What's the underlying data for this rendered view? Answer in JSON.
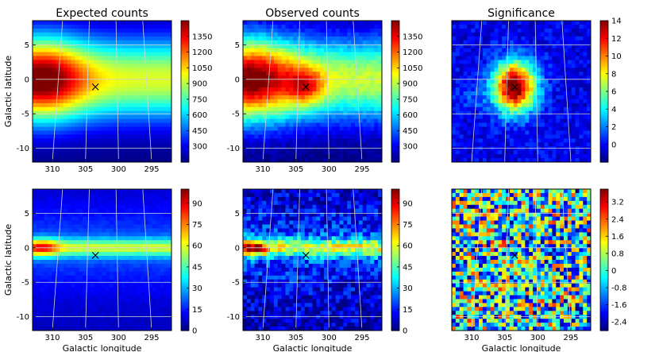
{
  "chart_data": [
    {
      "type": "heatmap",
      "title": "Expected counts",
      "xlabel": "",
      "ylabel": "Galactic latitude",
      "x_ticks": [
        "310",
        "305",
        "300",
        "295"
      ],
      "y_ticks": [
        "5",
        "0",
        "-5",
        "-10"
      ],
      "xlim": [
        313,
        292
      ],
      "ylim": [
        -12,
        8.5
      ],
      "colorbar": {
        "min": 150,
        "max": 1500,
        "ticks": [
          "1350",
          "1200",
          "1050",
          "900",
          "750",
          "600",
          "450",
          "300"
        ]
      },
      "field": "expected_top",
      "marker": {
        "x": 303.5,
        "y": -1.1
      }
    },
    {
      "type": "heatmap",
      "title": "Observed counts",
      "xlabel": "",
      "ylabel": "",
      "x_ticks": [
        "310",
        "305",
        "300",
        "295"
      ],
      "y_ticks": [
        "5",
        "0",
        "-5",
        "-10"
      ],
      "xlim": [
        313,
        292
      ],
      "ylim": [
        -12,
        8.5
      ],
      "colorbar": {
        "min": 150,
        "max": 1500,
        "ticks": [
          "1350",
          "1200",
          "1050",
          "900",
          "750",
          "600",
          "450",
          "300"
        ]
      },
      "field": "observed_top",
      "marker": {
        "x": 303.5,
        "y": -1.1
      }
    },
    {
      "type": "heatmap",
      "title": "Significance",
      "xlabel": "",
      "ylabel": "",
      "x_ticks": [],
      "y_ticks": [],
      "xlim": [
        313,
        292
      ],
      "ylim": [
        -12,
        8.5
      ],
      "colorbar": {
        "min": -2,
        "max": 14,
        "ticks": [
          "14",
          "12",
          "10",
          "8",
          "6",
          "4",
          "2",
          "0"
        ]
      },
      "field": "significance_top",
      "marker": {
        "x": 303.5,
        "y": -1.1
      }
    },
    {
      "type": "heatmap",
      "title": "",
      "xlabel": "Galactic longitude",
      "ylabel": "Galactic latitude",
      "x_ticks": [
        "310",
        "305",
        "300",
        "295"
      ],
      "y_ticks": [
        "5",
        "0",
        "-5",
        "-10"
      ],
      "xlim": [
        313,
        292
      ],
      "ylim": [
        -12,
        8.5
      ],
      "colorbar": {
        "min": 0,
        "max": 100,
        "ticks": [
          "90",
          "75",
          "60",
          "45",
          "30",
          "15",
          "0"
        ]
      },
      "field": "expected_bottom",
      "marker": {
        "x": 303.5,
        "y": -1.1
      }
    },
    {
      "type": "heatmap",
      "title": "",
      "xlabel": "Galactic longitude",
      "ylabel": "",
      "x_ticks": [
        "310",
        "305",
        "300",
        "295"
      ],
      "y_ticks": [
        "5",
        "0",
        "-5",
        "-10"
      ],
      "xlim": [
        313,
        292
      ],
      "ylim": [
        -12,
        8.5
      ],
      "colorbar": {
        "min": 0,
        "max": 100,
        "ticks": [
          "90",
          "75",
          "60",
          "45",
          "30",
          "15",
          "0"
        ]
      },
      "field": "observed_bottom",
      "marker": {
        "x": 303.5,
        "y": -1.1
      }
    },
    {
      "type": "heatmap",
      "title": "",
      "xlabel": "Galactic longitude",
      "ylabel": "",
      "x_ticks": [
        "310",
        "305",
        "300",
        "295"
      ],
      "y_ticks": [],
      "xlim": [
        313,
        292
      ],
      "ylim": [
        -12,
        8.5
      ],
      "colorbar": {
        "min": -2.8,
        "max": 3.8,
        "ticks": [
          "3.2",
          "2.4",
          "1.6",
          "0.8",
          "0",
          "-0.8",
          "-1.6",
          "-2.4"
        ]
      },
      "field": "residual_bottom",
      "marker": {
        "x": 303.5,
        "y": -1.1
      }
    }
  ]
}
